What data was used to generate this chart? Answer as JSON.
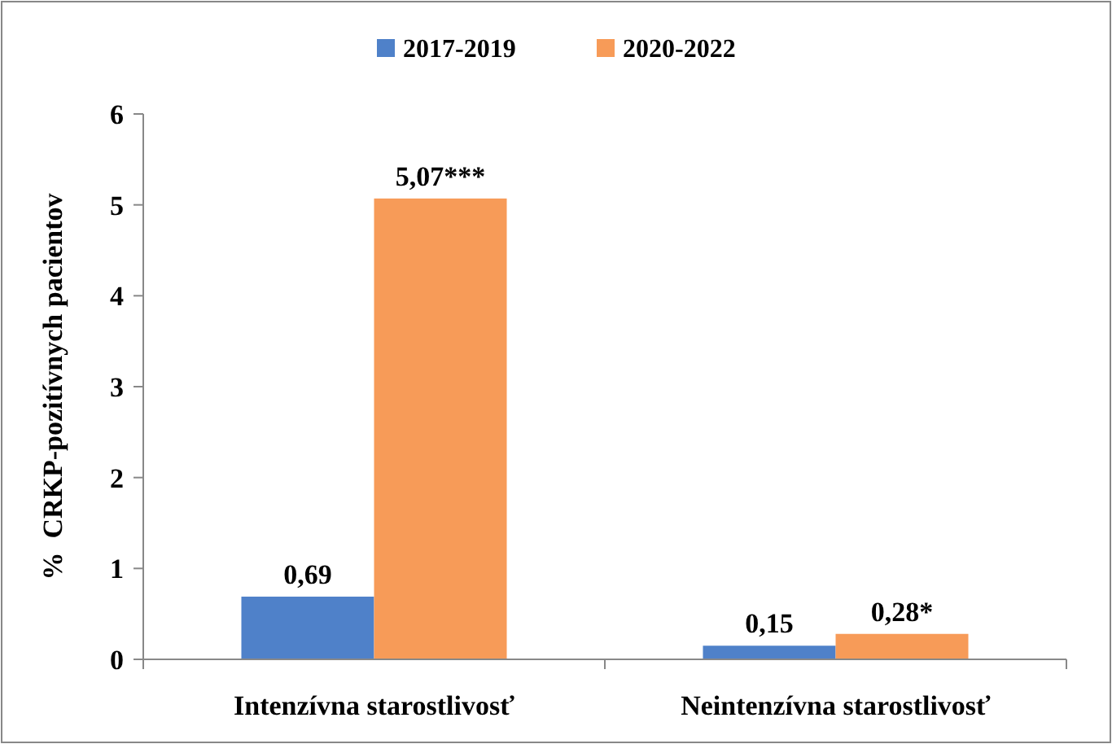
{
  "chart_data": {
    "type": "bar",
    "ylabel": "%  CRKP-pozitívnych pacientov",
    "categories": [
      "Intenzívna starostlivosť",
      "Neintenzívna starostlivosť"
    ],
    "series": [
      {
        "name": "2017-2019",
        "color": "#4f81c9",
        "values": [
          0.69,
          0.15
        ],
        "value_labels": [
          "0,69",
          "0,15"
        ]
      },
      {
        "name": "2020-2022",
        "color": "#f79b58",
        "values": [
          5.07,
          0.28
        ],
        "value_labels": [
          "5,07***",
          "0,28*"
        ]
      }
    ],
    "ylim": [
      0,
      6
    ],
    "yticks": [
      0,
      1,
      2,
      3,
      4,
      5,
      6
    ],
    "grid": false,
    "legend": "top"
  }
}
